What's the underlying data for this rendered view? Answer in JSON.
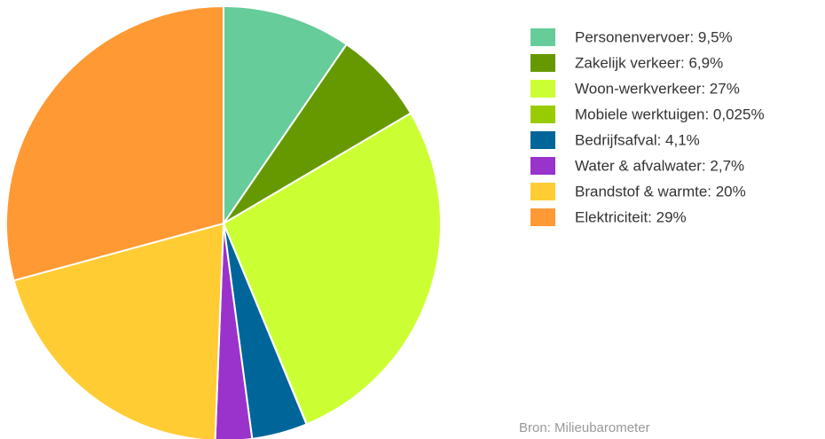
{
  "chart_data": {
    "type": "pie",
    "categories": [
      "Personenvervoer: 9,5%",
      "Zakelijk verkeer: 6,9%",
      "Woon-werkverkeer: 27%",
      "Mobiele werktuigen: 0,025%",
      "Bedrijfsafval: 4,1%",
      "Water & afvalwater: 2,7%",
      "Brandstof & warmte: 20%",
      "Elektriciteit: 29%"
    ],
    "values": [
      9.5,
      6.9,
      27,
      0.025,
      4.1,
      2.7,
      20,
      29
    ],
    "colors": [
      "#66cc99",
      "#669900",
      "#ccff33",
      "#99cc00",
      "#006699",
      "#9933cc",
      "#ffcc33",
      "#ff9933"
    ],
    "source": "Bron: Milieubarometer",
    "legend": "right"
  }
}
